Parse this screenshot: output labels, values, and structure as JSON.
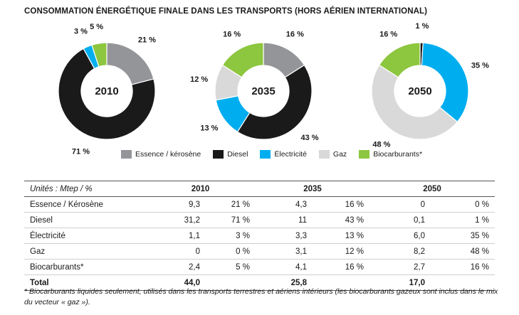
{
  "title": "CONSOMMATION ÉNERGÉTIQUE FINALE DANS LES TRANSPORTS (HORS AÉRIEN INTERNATIONAL)",
  "colors": {
    "Essence / kérosène": "#939598",
    "Diesel": "#1a1a1a",
    "Électricité": "#00aeef",
    "Gaz": "#d9d9d9",
    "Biocarburants*": "#8dc63f"
  },
  "legend": [
    "Essence / kérosène",
    "Diesel",
    "Électricité",
    "Gaz",
    "Biocarburants*"
  ],
  "chart_data": [
    {
      "type": "pie",
      "title": "2010",
      "slices": [
        {
          "label": "Essence / kérosène",
          "value": 21,
          "text": "21 %"
        },
        {
          "label": "Diesel",
          "value": 71,
          "text": "71 %"
        },
        {
          "label": "Électricité",
          "value": 3,
          "text": "3 %"
        },
        {
          "label": "Gaz",
          "value": 0,
          "text": ""
        },
        {
          "label": "Biocarburants*",
          "value": 5,
          "text": "5 %"
        }
      ]
    },
    {
      "type": "pie",
      "title": "2035",
      "slices": [
        {
          "label": "Essence / kérosène",
          "value": 16,
          "text": "16 %"
        },
        {
          "label": "Diesel",
          "value": 43,
          "text": "43 %"
        },
        {
          "label": "Électricité",
          "value": 13,
          "text": "13 %"
        },
        {
          "label": "Gaz",
          "value": 12,
          "text": "12 %"
        },
        {
          "label": "Biocarburants*",
          "value": 16,
          "text": "16 %"
        }
      ]
    },
    {
      "type": "pie",
      "title": "2050",
      "slices": [
        {
          "label": "Essence / kérosène",
          "value": 0,
          "text": ""
        },
        {
          "label": "Diesel",
          "value": 1,
          "text": "1 %"
        },
        {
          "label": "Électricité",
          "value": 35,
          "text": "35 %"
        },
        {
          "label": "Gaz",
          "value": 48,
          "text": "48 %"
        },
        {
          "label": "Biocarburants*",
          "value": 16,
          "text": "16 %"
        }
      ]
    },
    {
      "type": "table",
      "header": {
        "units": "Unités : Mtep / %",
        "years": [
          "2010",
          "2035",
          "2050"
        ]
      },
      "rows": [
        {
          "label": "Essence / Kérosène",
          "values": [
            "9,3",
            "21 %",
            "4,3",
            "16 %",
            "0",
            "0 %"
          ]
        },
        {
          "label": "Diesel",
          "values": [
            "31,2",
            "71 %",
            "11",
            "43 %",
            "0,1",
            "1 %"
          ]
        },
        {
          "label": "Électricité",
          "values": [
            "1,1",
            "3 %",
            "3,3",
            "13 %",
            "6,0",
            "35 %"
          ]
        },
        {
          "label": "Gaz",
          "values": [
            "0",
            "0 %",
            "3,1",
            "12 %",
            "8,2",
            "48 %"
          ]
        },
        {
          "label": "Biocarburants*",
          "values": [
            "2,4",
            "5 %",
            "4,1",
            "16 %",
            "2,7",
            "16 %"
          ]
        }
      ],
      "total": {
        "label": "Total",
        "values": [
          "44,0",
          "",
          "25,8",
          "",
          "17,0",
          ""
        ]
      }
    }
  ],
  "footnote": "* Biocarburants liquides seulement, utilisés dans les transports terrestres et aériens intérieurs (les biocarburants gazeux sont inclus dans le mix du vecteur « gaz »)."
}
